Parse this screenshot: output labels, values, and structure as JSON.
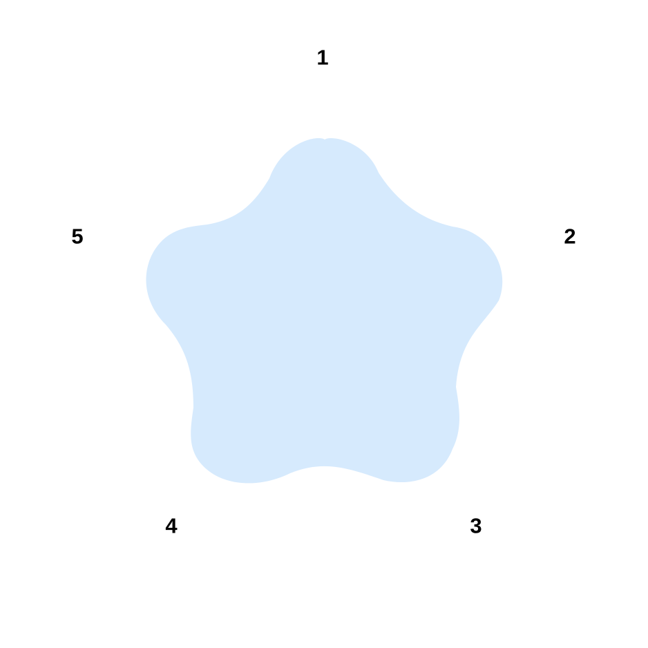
{
  "shape": {
    "kind": "rounded-pentagon-star",
    "fill_color": "#d6eafd"
  },
  "labels": [
    "1",
    "2",
    "3",
    "4",
    "5"
  ],
  "label_color": "#000000"
}
